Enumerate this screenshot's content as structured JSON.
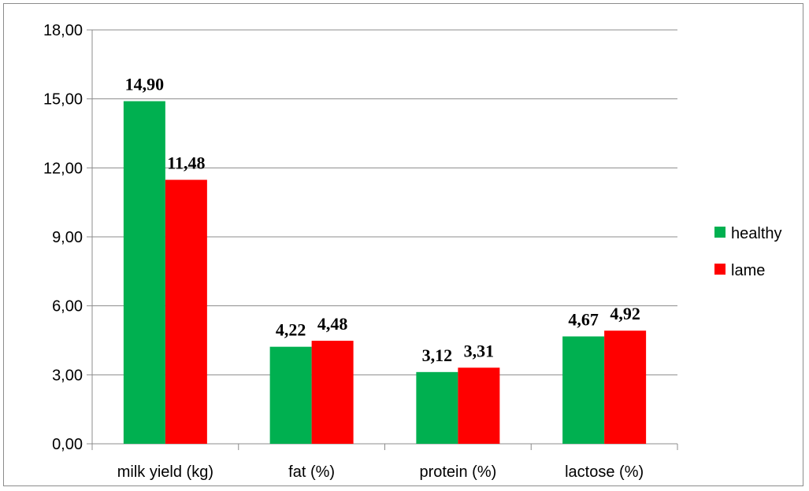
{
  "chart_data": {
    "type": "bar",
    "categories": [
      "milk yield (kg)",
      "fat (%)",
      "protein (%)",
      "lactose (%)"
    ],
    "series": [
      {
        "name": "healthy",
        "color": "#00b050",
        "values": [
          14.9,
          4.22,
          3.12,
          4.67
        ],
        "labels": [
          "14,90",
          "4,22",
          "3,12",
          "4,67"
        ]
      },
      {
        "name": "lame",
        "color": "#ff0000",
        "values": [
          11.48,
          4.48,
          3.31,
          4.92
        ],
        "labels": [
          "11,48",
          "4,48",
          "3,31",
          "4,92"
        ]
      }
    ],
    "ylim": [
      0,
      18
    ],
    "yticks": [
      0,
      3,
      6,
      9,
      12,
      15,
      18
    ],
    "ytick_labels": [
      "0,00",
      "3,00",
      "6,00",
      "9,00",
      "12,00",
      "15,00",
      "18,00"
    ],
    "grid": true,
    "legend_position": "right",
    "title": "",
    "xlabel": "",
    "ylabel": ""
  }
}
